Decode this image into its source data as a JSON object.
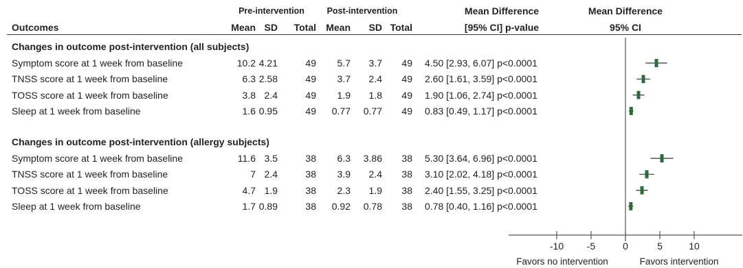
{
  "chart_data": {
    "type": "forest",
    "header": {
      "group_pre": "Pre-intervention",
      "group_post": "Post-intervention",
      "mean_diff_title": "Mean Difference",
      "ci_pvalue_label": "[95% CI] p-value",
      "plot_title": "Mean Difference",
      "plot_subtitle": "95% CI",
      "outcomes": "Outcomes",
      "mean": "Mean",
      "sd": "SD",
      "total": "Total"
    },
    "sections": [
      {
        "title": "Changes in outcome post-intervention (all subjects)",
        "rows": [
          {
            "label": "Symptom score at 1 week from baseline",
            "pre_mean": "10.2",
            "pre_sd": "4.21",
            "pre_total": "49",
            "post_mean": "5.7",
            "post_sd": "3.7",
            "post_total": "49",
            "effect": "4.50 [2.93, 6.07] p<0.0001",
            "md": 4.5,
            "lo": 2.93,
            "hi": 6.07
          },
          {
            "label": "TNSS score at 1 week from baseline",
            "pre_mean": "6.3",
            "pre_sd": "2.58",
            "pre_total": "49",
            "post_mean": "3.7",
            "post_sd": "2.4",
            "post_total": "49",
            "effect": "2.60 [1.61, 3.59] p<0.0001",
            "md": 2.6,
            "lo": 1.61,
            "hi": 3.59
          },
          {
            "label": "TOSS score at 1 week from baseline",
            "pre_mean": "3.8",
            "pre_sd": "2.4",
            "pre_total": "49",
            "post_mean": "1.9",
            "post_sd": "1.8",
            "post_total": "49",
            "effect": "1.90 [1.06, 2.74] p<0.0001",
            "md": 1.9,
            "lo": 1.06,
            "hi": 2.74
          },
          {
            "label": "Sleep at 1 week from baseline",
            "pre_mean": "1.6",
            "pre_sd": "0.95",
            "pre_total": "49",
            "post_mean": "0.77",
            "post_sd": "0.77",
            "post_total": "49",
            "effect": "0.83 [0.49, 1.17] p<0.0001",
            "md": 0.83,
            "lo": 0.49,
            "hi": 1.17
          }
        ]
      },
      {
        "title": "Changes in outcome post-intervention (allergy subjects)",
        "rows": [
          {
            "label": "Symptom score at 1 week from baseline",
            "pre_mean": "11.6",
            "pre_sd": "3.5",
            "pre_total": "38",
            "post_mean": "6.3",
            "post_sd": "3.86",
            "post_total": "38",
            "effect": "5.30 [3.64, 6.96] p<0.0001",
            "md": 5.3,
            "lo": 3.64,
            "hi": 6.96
          },
          {
            "label": "TNSS score at 1 week from baseline",
            "pre_mean": "7",
            "pre_sd": "2.4",
            "pre_total": "38",
            "post_mean": "3.9",
            "post_sd": "2.4",
            "post_total": "38",
            "effect": "3.10 [2.02, 4.18] p<0.0001",
            "md": 3.1,
            "lo": 2.02,
            "hi": 4.18
          },
          {
            "label": "TOSS score at 1 week from baseline",
            "pre_mean": "4.7",
            "pre_sd": "1.9",
            "pre_total": "38",
            "post_mean": "2.3",
            "post_sd": "1.9",
            "post_total": "38",
            "effect": "2.40 [1.55, 3.25] p<0.0001",
            "md": 2.4,
            "lo": 1.55,
            "hi": 3.25
          },
          {
            "label": "Sleep at 1 week from baseline",
            "pre_mean": "1.7",
            "pre_sd": "0.89",
            "pre_total": "38",
            "post_mean": "0.92",
            "post_sd": "0.78",
            "post_total": "38",
            "effect": "0.78 [0.40, 1.16] p<0.0001",
            "md": 0.78,
            "lo": 0.4,
            "hi": 1.16
          }
        ]
      }
    ],
    "axis": {
      "xlim": [
        -17,
        17
      ],
      "ticks": [
        -10,
        -5,
        0,
        5,
        10
      ],
      "tick_labels": [
        "-10",
        "-5",
        "0",
        "5",
        "10"
      ],
      "reference_line": 0
    },
    "footer": {
      "left_label": "Favors no intervention",
      "right_label": "Favors intervention"
    },
    "colors": {
      "marker": "#2e6b3c",
      "ci_line": "#333333",
      "text": "#222222"
    }
  }
}
